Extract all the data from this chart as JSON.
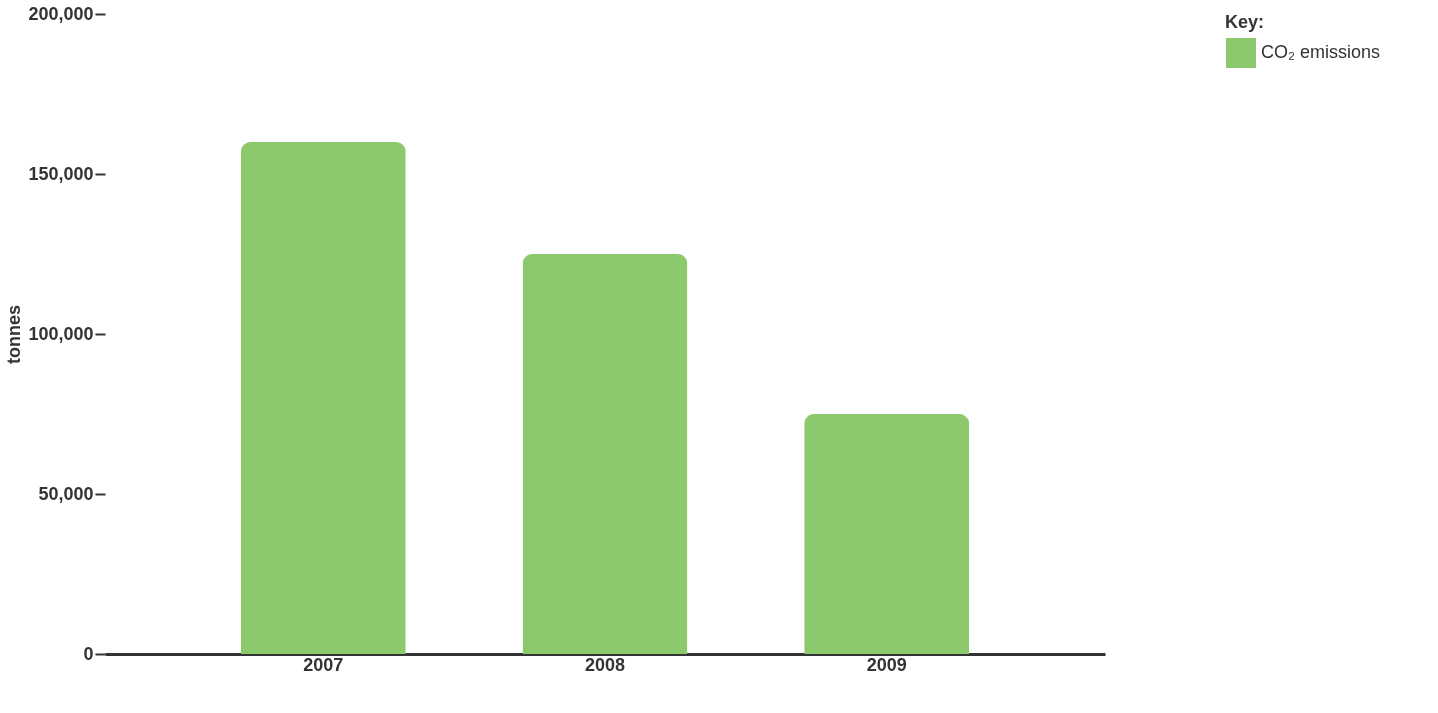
{
  "chart_data": {
    "type": "bar",
    "ylabel": "tonnes",
    "legend_title": "Key:",
    "categories": [
      "2007",
      "2008",
      "2009"
    ],
    "series": [
      {
        "name": "CO₂ emissions",
        "color": "#8cc96c",
        "values": [
          160000,
          125000,
          75000
        ]
      }
    ],
    "ylim": [
      0,
      200000
    ],
    "yticks": [
      0,
      {
        "value": 50000,
        "label": "50,000"
      },
      {
        "value": 100000,
        "label": "100,000"
      },
      {
        "value": 150000,
        "label": "150,000"
      },
      {
        "value": 200000,
        "label": "200,000"
      }
    ],
    "grid": false,
    "legend": "right"
  }
}
